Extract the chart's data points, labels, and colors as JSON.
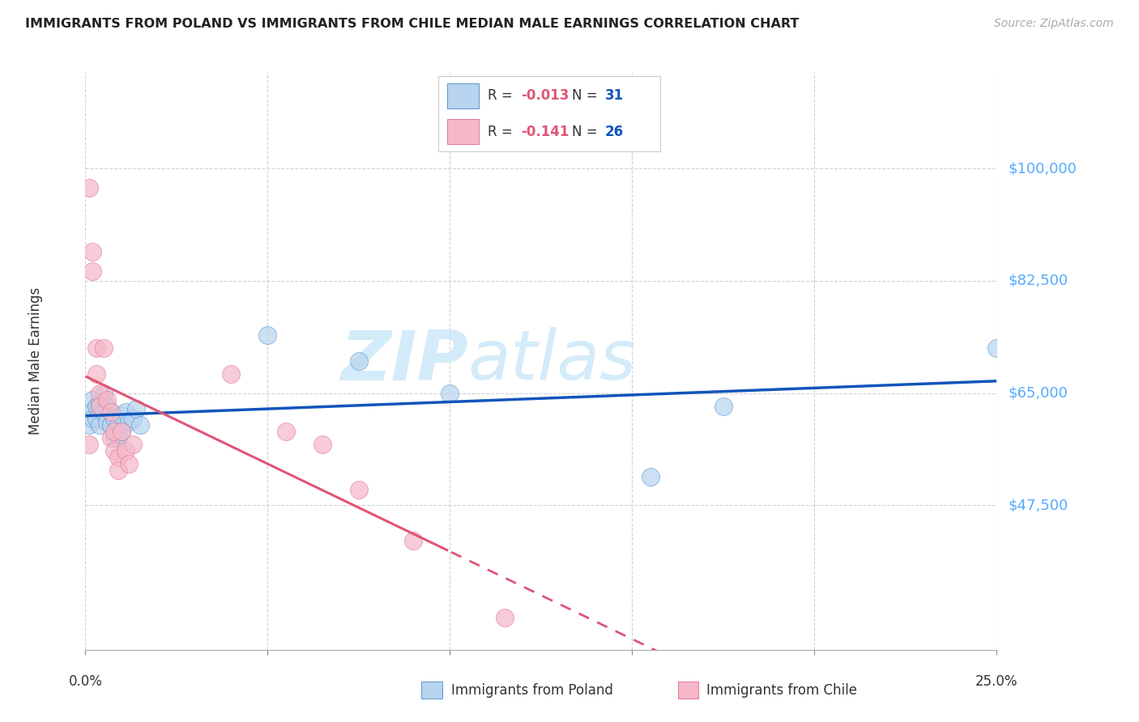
{
  "title": "IMMIGRANTS FROM POLAND VS IMMIGRANTS FROM CHILE MEDIAN MALE EARNINGS CORRELATION CHART",
  "source": "Source: ZipAtlas.com",
  "ylabel": "Median Male Earnings",
  "y_tick_labels": [
    "$47,500",
    "$65,000",
    "$82,500",
    "$100,000"
  ],
  "y_tick_values": [
    47500,
    65000,
    82500,
    100000
  ],
  "x_tick_values": [
    0.0,
    0.05,
    0.1,
    0.15,
    0.2,
    0.25
  ],
  "xmin": 0.0,
  "xmax": 0.25,
  "ymin": 25000,
  "ymax": 115000,
  "legend_poland": "Immigrants from Poland",
  "legend_chile": "Immigrants from Chile",
  "R_poland": "-0.013",
  "N_poland": "31",
  "R_chile": "-0.141",
  "N_chile": "26",
  "color_poland_fill": "#b8d4ee",
  "color_chile_fill": "#f5b8c8",
  "color_poland_edge": "#4488cc",
  "color_chile_edge": "#dd6688",
  "color_poland_line": "#1155bb",
  "color_chile_line": "#e05575",
  "color_axis_right": "#55aaff",
  "color_grid": "#cccccc",
  "watermark_color": "#cde8f8",
  "poland_x": [
    0.001,
    0.001,
    0.002,
    0.002,
    0.003,
    0.003,
    0.004,
    0.004,
    0.005,
    0.005,
    0.006,
    0.006,
    0.007,
    0.007,
    0.008,
    0.008,
    0.009,
    0.009,
    0.01,
    0.01,
    0.011,
    0.012,
    0.013,
    0.014,
    0.015,
    0.05,
    0.075,
    0.1,
    0.155,
    0.175,
    0.25
  ],
  "poland_y": [
    62000,
    60000,
    64000,
    61000,
    63000,
    61000,
    63500,
    60000,
    65000,
    62000,
    63000,
    60500,
    62000,
    60000,
    61000,
    58000,
    60000,
    58000,
    61500,
    59000,
    62000,
    60500,
    61000,
    62500,
    60000,
    74000,
    70000,
    65000,
    52000,
    63000,
    72000
  ],
  "chile_x": [
    0.001,
    0.001,
    0.002,
    0.002,
    0.003,
    0.003,
    0.004,
    0.004,
    0.005,
    0.006,
    0.007,
    0.007,
    0.008,
    0.008,
    0.009,
    0.009,
    0.01,
    0.011,
    0.012,
    0.013,
    0.04,
    0.055,
    0.065,
    0.075,
    0.09,
    0.115
  ],
  "chile_y": [
    97000,
    57000,
    87000,
    84000,
    72000,
    68000,
    65000,
    63000,
    72000,
    64000,
    62000,
    58000,
    56000,
    59000,
    55000,
    53000,
    59000,
    56000,
    54000,
    57000,
    68000,
    59000,
    57000,
    50000,
    42000,
    30000
  ]
}
